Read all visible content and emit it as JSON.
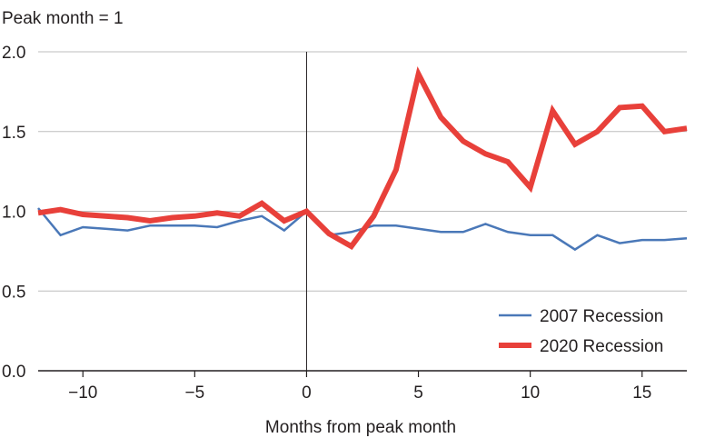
{
  "chart_data": {
    "type": "line",
    "title": "",
    "ylabel": "Peak month = 1",
    "xlabel": "Months from peak month",
    "xlim": [
      -12,
      17
    ],
    "ylim": [
      0,
      2.0
    ],
    "x_ticks": [
      -10,
      -5,
      0,
      5,
      10,
      15
    ],
    "x_tick_labels": [
      "−10",
      "−5",
      "0",
      "5",
      "10",
      "15"
    ],
    "y_ticks": [
      0,
      0.5,
      1.0,
      1.5,
      2.0
    ],
    "y_tick_labels": [
      "0.0",
      "0.5",
      "1.0",
      "1.5",
      "2.0"
    ],
    "grid": "horizontal",
    "reference_line_x": 0,
    "legend_position": "bottom-right",
    "x": [
      -12,
      -11,
      -10,
      -9,
      -8,
      -7,
      -6,
      -5,
      -4,
      -3,
      -2,
      -1,
      0,
      1,
      2,
      3,
      4,
      5,
      6,
      7,
      8,
      9,
      10,
      11,
      12,
      13,
      14,
      15,
      16,
      17
    ],
    "series": [
      {
        "name": "2007 Recession",
        "color": "#4a78b8",
        "values": [
          1.02,
          0.85,
          0.9,
          0.89,
          0.88,
          0.91,
          0.91,
          0.91,
          0.9,
          0.94,
          0.97,
          0.88,
          1.0,
          0.85,
          0.87,
          0.91,
          0.91,
          0.89,
          0.87,
          0.87,
          0.92,
          0.87,
          0.85,
          0.85,
          0.76,
          0.85,
          0.8,
          0.82,
          0.82,
          0.83
        ]
      },
      {
        "name": "2020 Recession",
        "color": "#e8403a",
        "values": [
          0.99,
          1.01,
          0.98,
          0.97,
          0.96,
          0.94,
          0.96,
          0.97,
          0.99,
          0.97,
          1.05,
          0.94,
          1.0,
          0.86,
          0.78,
          0.97,
          1.26,
          1.86,
          1.59,
          1.44,
          1.36,
          1.31,
          1.15,
          1.63,
          1.42,
          1.5,
          1.65,
          1.66,
          1.5,
          1.52
        ]
      }
    ]
  }
}
